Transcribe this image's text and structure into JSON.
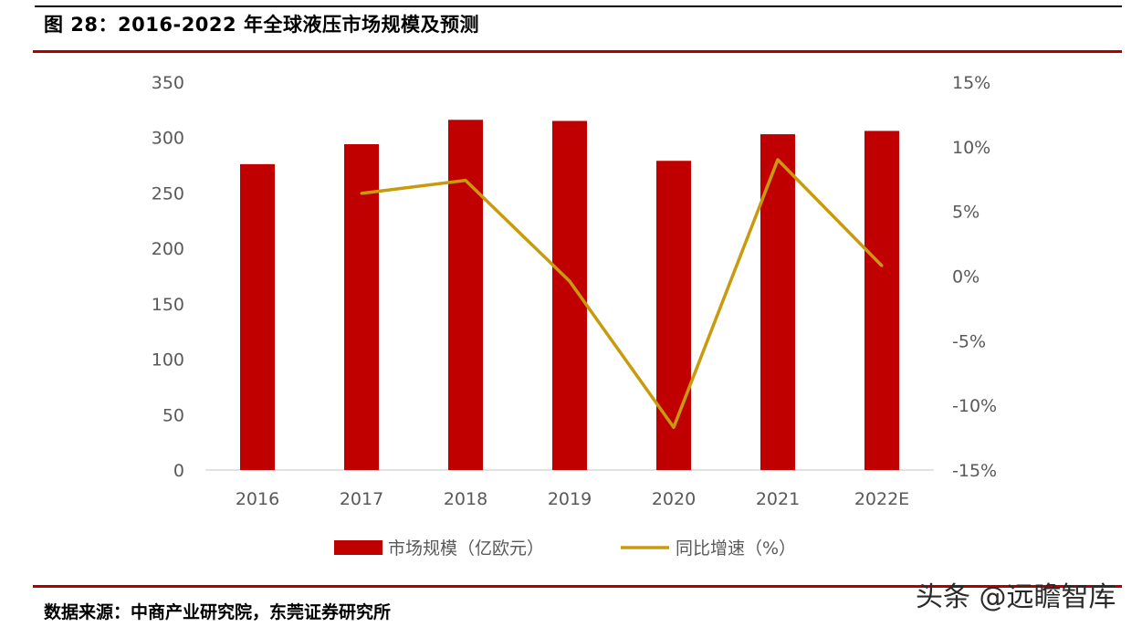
{
  "figure": {
    "title": "图 28：2016-2022 年全球液压市场规模及预测",
    "source": "数据来源：中商产业研究院，东莞证券研究所",
    "watermark": "头条 @远瞻智库"
  },
  "chart_data": {
    "type": "bar",
    "categories": [
      "2016",
      "2017",
      "2018",
      "2019",
      "2020",
      "2021",
      "2022E"
    ],
    "series": [
      {
        "name": "市场规模（亿欧元）",
        "type": "bar",
        "axis": "left",
        "color": "#c00000",
        "values": [
          276,
          294,
          316,
          315,
          279,
          303,
          306
        ]
      },
      {
        "name": "同比增速（%）",
        "type": "line",
        "axis": "right",
        "color": "#c89b0c",
        "values": [
          null,
          6.4,
          7.4,
          -0.4,
          -11.7,
          9.0,
          0.8
        ]
      }
    ],
    "left_axis": {
      "ylim": [
        0,
        350
      ],
      "ticks": [
        0,
        50,
        100,
        150,
        200,
        250,
        300,
        350
      ],
      "tick_labels": [
        "0",
        "50",
        "100",
        "150",
        "200",
        "250",
        "300",
        "350"
      ]
    },
    "right_axis": {
      "ylim": [
        -15,
        15
      ],
      "ticks": [
        -15,
        -10,
        -5,
        0,
        5,
        10,
        15
      ],
      "tick_labels": [
        "-15%",
        "-10%",
        "-5%",
        "0%",
        "5%",
        "10%",
        "15%"
      ]
    },
    "legend_position": "bottom",
    "grid": false
  }
}
